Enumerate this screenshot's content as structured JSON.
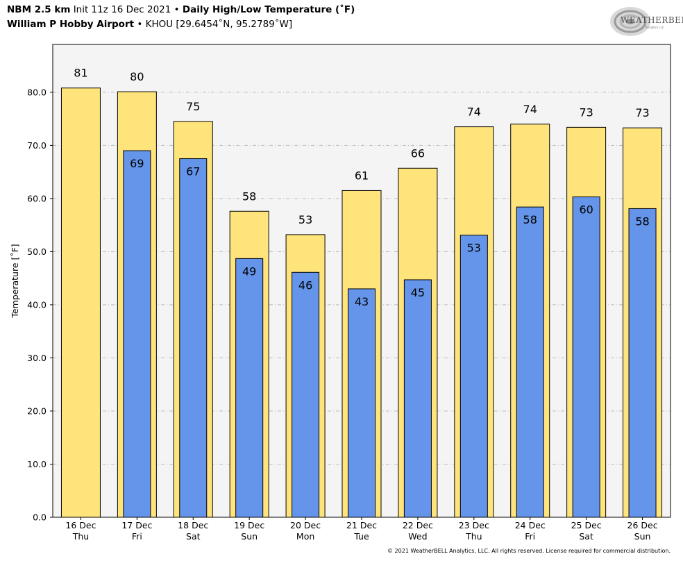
{
  "header": {
    "model": "NBM 2.5 km",
    "init": "Init 11z 16 Dec 2021",
    "bullet": "•",
    "product": "Daily High/Low Temperature (˚F)",
    "station_name": "William P Hobby Airport",
    "station_info": "KHOU [29.6454˚N, 95.2789˚W]"
  },
  "logo": {
    "text": "WEATHERBELL",
    "subtext": "Analytics LLC",
    "icon": "weatherbell-swirl-logo"
  },
  "copyright": "© 2021 WeatherBELL Analytics, LLC. All rights reserved. License required for commercial distribution.",
  "colors": {
    "high_bar": "#FFE47C",
    "low_bar": "#6495EB",
    "plot_bg": "#F4F4F4",
    "grid": "#BBBBBB"
  },
  "chart_data": {
    "type": "bar",
    "ylabel": "Temperature [˚F]",
    "ylim": [
      0,
      89
    ],
    "yticks": [
      0,
      10,
      20,
      30,
      40,
      50,
      60,
      70,
      80
    ],
    "ytick_labels": [
      "0.0",
      "10.0",
      "20.0",
      "30.0",
      "40.0",
      "50.0",
      "60.0",
      "70.0",
      "80.0"
    ],
    "grid": true,
    "categories": [
      {
        "date": "16 Dec",
        "day": "Thu"
      },
      {
        "date": "17 Dec",
        "day": "Fri"
      },
      {
        "date": "18 Dec",
        "day": "Sat"
      },
      {
        "date": "19 Dec",
        "day": "Sun"
      },
      {
        "date": "20 Dec",
        "day": "Mon"
      },
      {
        "date": "21 Dec",
        "day": "Tue"
      },
      {
        "date": "22 Dec",
        "day": "Wed"
      },
      {
        "date": "23 Dec",
        "day": "Thu"
      },
      {
        "date": "24 Dec",
        "day": "Fri"
      },
      {
        "date": "25 Dec",
        "day": "Sat"
      },
      {
        "date": "26 Dec",
        "day": "Sun"
      }
    ],
    "series": [
      {
        "key": "high",
        "values": [
          80.8,
          80.1,
          74.5,
          57.6,
          53.2,
          61.5,
          65.7,
          73.5,
          74.0,
          73.4,
          73.3
        ],
        "labels": [
          "81",
          "80",
          "75",
          "58",
          "53",
          "61",
          "66",
          "74",
          "74",
          "73",
          "73"
        ]
      },
      {
        "key": "low",
        "values": [
          null,
          69.0,
          67.5,
          48.7,
          46.1,
          43.0,
          44.7,
          53.1,
          58.4,
          60.3,
          58.1
        ],
        "labels": [
          null,
          "69",
          "67",
          "49",
          "46",
          "43",
          "45",
          "53",
          "58",
          "60",
          "58"
        ]
      }
    ]
  }
}
